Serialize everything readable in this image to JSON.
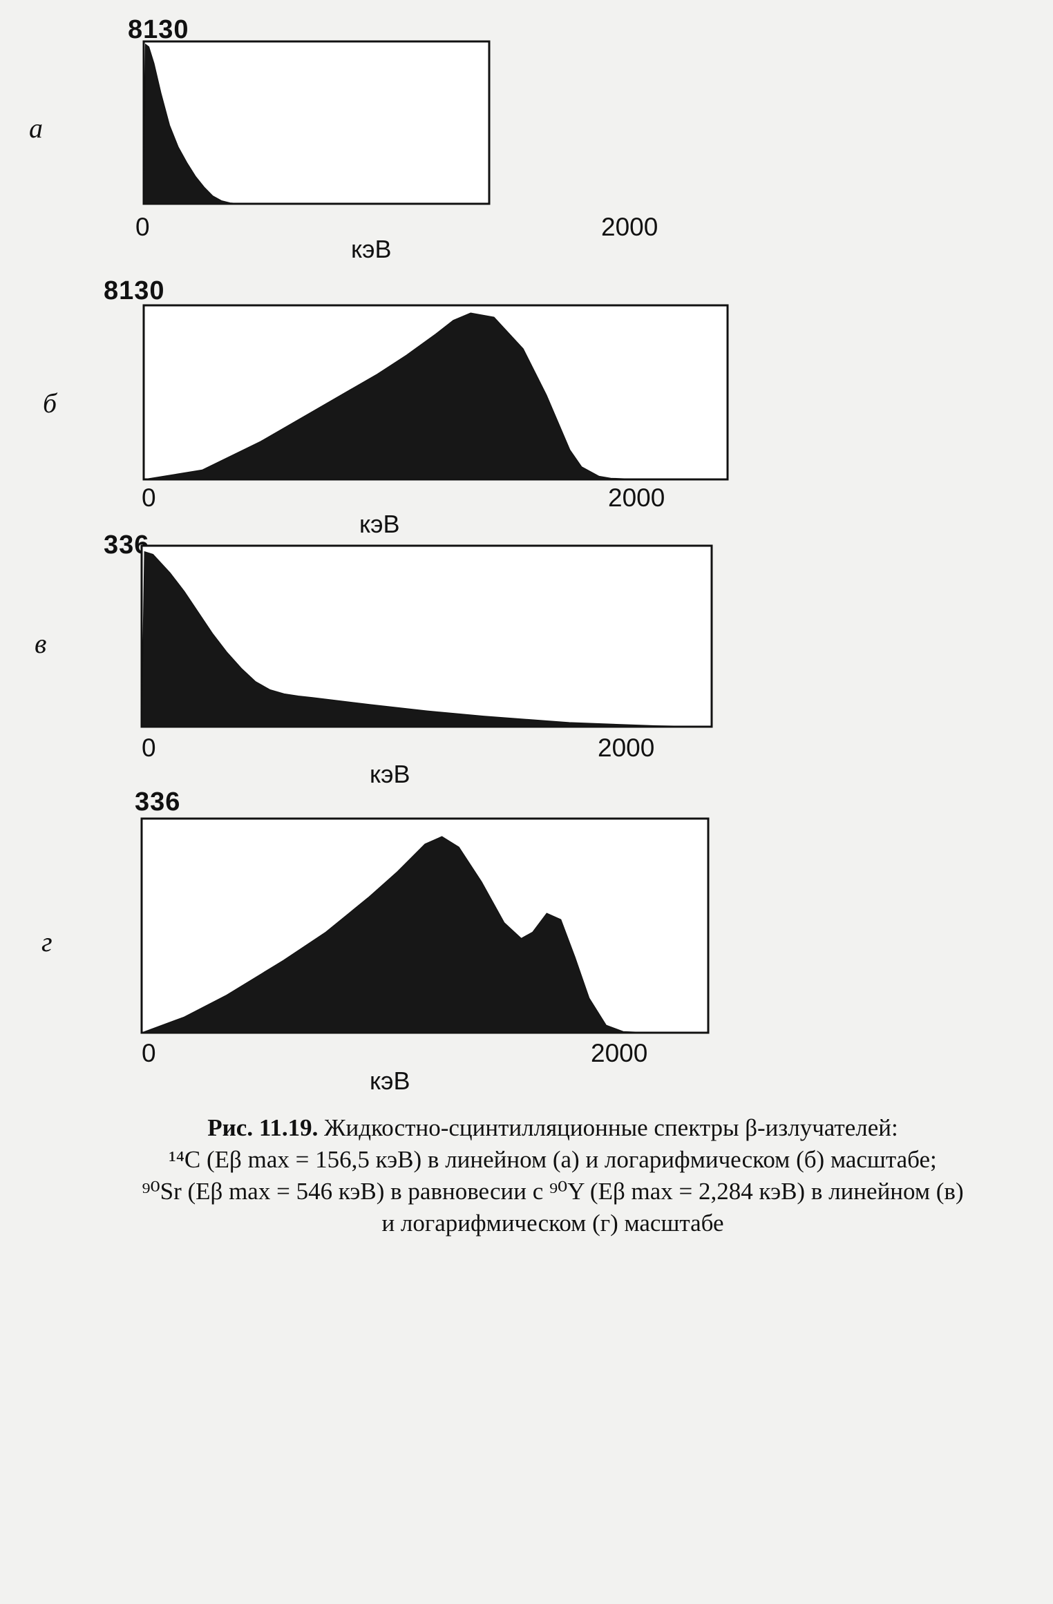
{
  "chart_data": [
    {
      "type": "area",
      "panel_letter": "а",
      "ymax_label": "8130",
      "xlabel": "кэВ",
      "xticks": [
        "0",
        "2000"
      ],
      "xlim": [
        0,
        2000
      ],
      "ylim": [
        0,
        8130
      ],
      "grid": false,
      "series": [
        {
          "x": [
            0,
            10,
            30,
            60,
            100,
            150,
            200,
            250,
            300,
            350,
            400,
            450,
            500,
            550,
            600,
            2000
          ],
          "y": [
            0,
            8130,
            8000,
            7150,
            5650,
            4000,
            2900,
            2100,
            1400,
            850,
            400,
            160,
            50,
            15,
            0,
            0
          ]
        }
      ]
    },
    {
      "type": "area",
      "panel_letter": "б",
      "ymax_label": "8130",
      "xlabel": "кэВ",
      "xticks": [
        "0",
        "2000"
      ],
      "xlim": [
        0,
        2000
      ],
      "ylim": [
        0,
        8130
      ],
      "grid": false,
      "series": [
        {
          "x": [
            0,
            200,
            400,
            600,
            800,
            900,
            1000,
            1060,
            1120,
            1200,
            1300,
            1380,
            1460,
            1500,
            1560,
            1600,
            1700,
            2000
          ],
          "y": [
            0,
            450,
            1800,
            3400,
            5000,
            5900,
            6900,
            7550,
            7900,
            7700,
            6200,
            4000,
            1400,
            600,
            150,
            60,
            0,
            0
          ]
        }
      ]
    },
    {
      "type": "area",
      "panel_letter": "в",
      "ymax_label": "336",
      "xlabel": "кэВ",
      "xticks": [
        "0",
        "2000"
      ],
      "xlim": [
        0,
        2000
      ],
      "ylim": [
        0,
        336
      ],
      "grid": false,
      "series": [
        {
          "x": [
            0,
            10,
            40,
            100,
            150,
            200,
            250,
            300,
            350,
            400,
            450,
            500,
            550,
            600,
            800,
            1000,
            1200,
            1500,
            1800,
            2000
          ],
          "y": [
            0,
            330,
            325,
            290,
            255,
            215,
            175,
            140,
            110,
            85,
            70,
            62,
            58,
            55,
            42,
            30,
            20,
            8,
            2,
            0
          ]
        }
      ]
    },
    {
      "type": "area",
      "panel_letter": "г",
      "ymax_label": "336",
      "xlabel": "кэВ",
      "xticks": [
        "0",
        "2000"
      ],
      "xlim": [
        0,
        2000
      ],
      "ylim": [
        0,
        336
      ],
      "grid": false,
      "series": [
        {
          "x": [
            0,
            150,
            300,
            500,
            650,
            800,
            900,
            1000,
            1060,
            1120,
            1200,
            1280,
            1340,
            1380,
            1430,
            1480,
            1530,
            1580,
            1640,
            1700,
            1800,
            2000
          ],
          "y": [
            0,
            25,
            60,
            115,
            160,
            215,
            255,
            300,
            312,
            295,
            240,
            175,
            150,
            160,
            190,
            180,
            120,
            55,
            12,
            2,
            0,
            0
          ]
        }
      ]
    }
  ],
  "caption": {
    "label": "Рис. 11.19.",
    "line1": "Жидкостно-сцинтилляционные спектры β-излучателей:",
    "line2": "¹⁴C (Eβ max = 156,5 кэВ) в линейном (а) и логарифмическом (б) масштабе;",
    "line3": "⁹⁰Sr (Eβ max = 546 кэВ) в равновесии с ⁹⁰Y (Eβ max = 2,284 кэВ) в линейном (в)",
    "line4": "и логарифмическом (г) масштабе"
  },
  "colors": {
    "fill": "#171717",
    "background": "#f2f2f0",
    "bleed_text": "#c6c6c2"
  }
}
